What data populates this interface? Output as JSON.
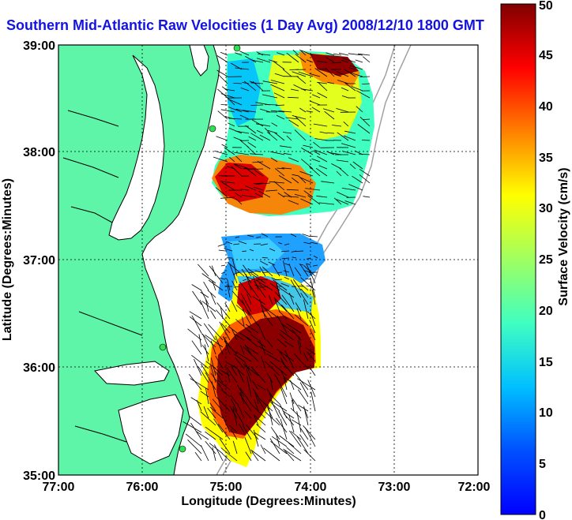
{
  "chart_data": {
    "type": "heatmap",
    "title": "Southern Mid-Atlantic Raw Velocities (1 Day Avg) 2008/12/10 1800 GMT",
    "xlabel": "Longitude (Degrees:Minutes)",
    "ylabel": "Latitude (Degrees:Minutes)",
    "colorbar_label": "Surface Velocity (cm/s)",
    "x_ticks": [
      "77:00",
      "76:00",
      "75:00",
      "74:00",
      "73:00",
      "72:00"
    ],
    "y_ticks": [
      "39:00",
      "38:00",
      "37:00",
      "36:00",
      "35:00"
    ],
    "colorbar_ticks": [
      "0",
      "5",
      "10",
      "15",
      "20",
      "25",
      "30",
      "35",
      "40",
      "45",
      "50"
    ],
    "xlim": [
      -77,
      -72
    ],
    "ylim": [
      35,
      39
    ],
    "clim": [
      0,
      50
    ],
    "grid": true,
    "colors": {
      "land": "#5ef5a8",
      "title": "#1414e0",
      "vector": "#000000",
      "bathymetry": "#a0a0a0"
    }
  }
}
